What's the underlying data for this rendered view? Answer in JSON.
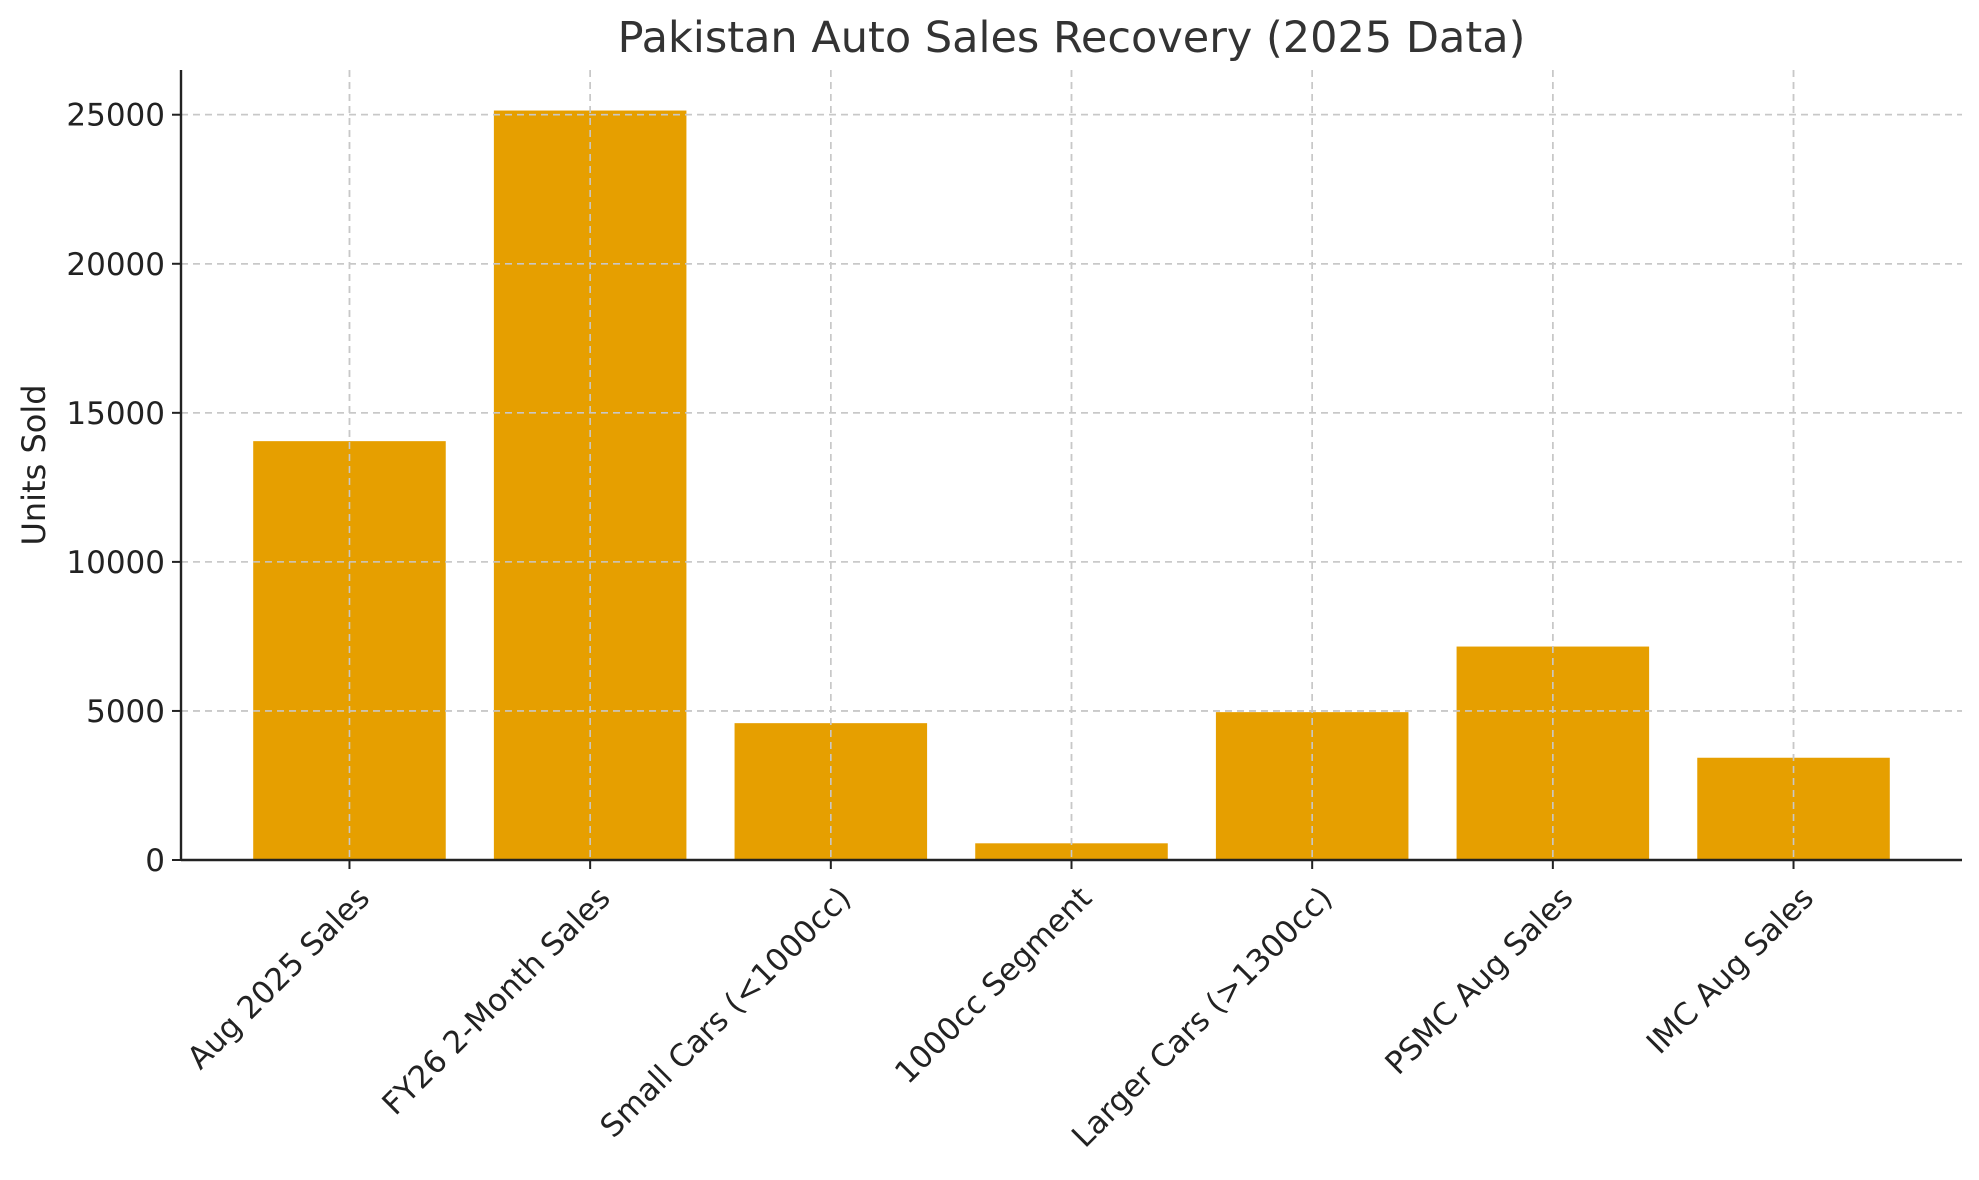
{
  "chart_data": {
    "type": "bar",
    "title": "Pakistan Auto Sales Recovery (2025 Data)",
    "xlabel": "",
    "ylabel": "Units Sold",
    "categories": [
      "Aug 2025 Sales",
      "FY26 2-Month Sales",
      "Small Cars (<1000cc)",
      "1000cc Segment",
      "Larger Cars (>1300cc)",
      "PSMC Aug Sales",
      "IMC Aug Sales"
    ],
    "values": [
      14050,
      25140,
      4590,
      560,
      4960,
      7160,
      3430
    ],
    "ylim": [
      0,
      26500
    ],
    "yticks": [
      0,
      5000,
      10000,
      15000,
      20000,
      25000
    ],
    "grid": true,
    "bar_color": "#E69F00"
  }
}
